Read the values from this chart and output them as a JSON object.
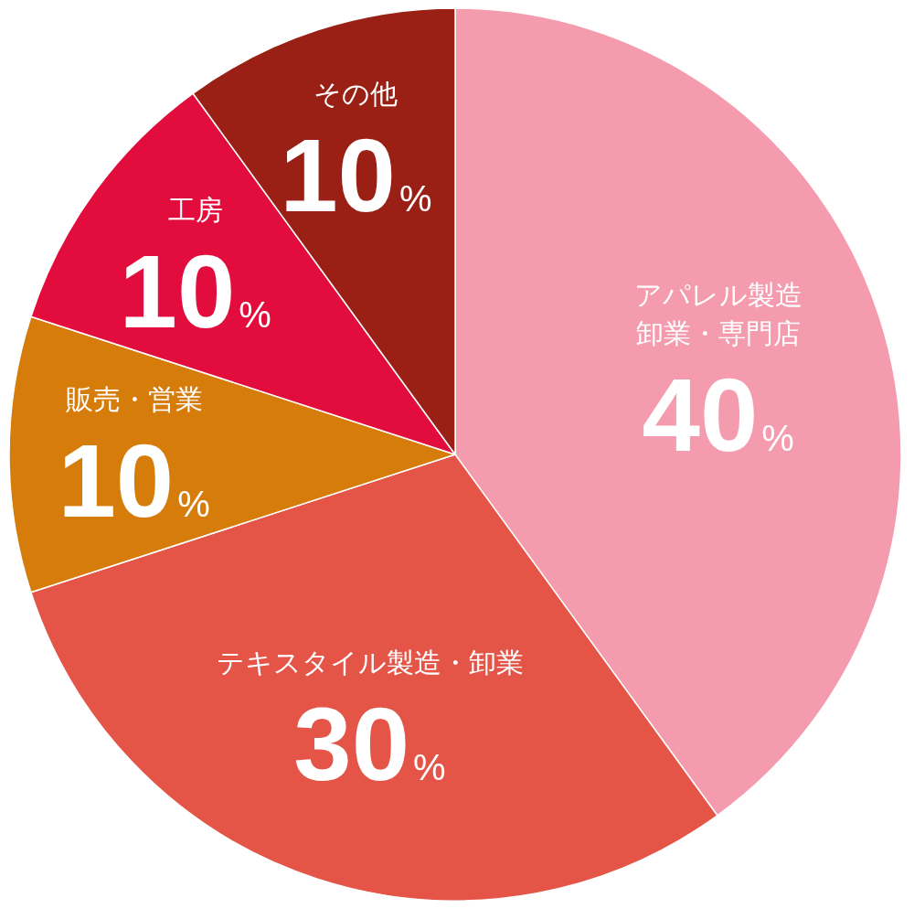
{
  "chart_data": {
    "type": "pie",
    "categories": [
      "アパレル製造卸業・専門店",
      "テキスタイル製造・卸業",
      "販売・営業",
      "工房",
      "その他"
    ],
    "values": [
      40,
      30,
      10,
      10,
      10
    ],
    "colors": [
      "#f59bae",
      "#e45447",
      "#d67c0b",
      "#e20d3c",
      "#9a1f15"
    ],
    "value_labels": [
      "40%",
      "30%",
      "10%",
      "10%",
      "10%"
    ]
  }
}
